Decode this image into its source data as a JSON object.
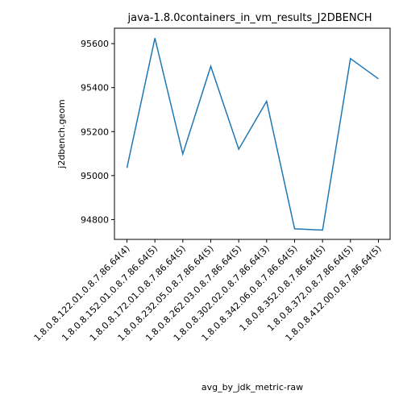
{
  "chart_data": {
    "type": "line",
    "title": "java-1.8.0containers_in_vm_results_J2DBENCH",
    "xlabel": "avg_by_jdk_metric-raw",
    "ylabel": "j2dbench.geom",
    "categories": [
      "1.8.0.8.122.01.0.8.7.86.64(4)",
      "1.8.0.8.152.01.0.8.7.86.64(5)",
      "1.8.0.8.172.01.0.8.7.86.64(5)",
      "1.8.0.8.232.05.0.8.7.86.64(5)",
      "1.8.0.8.262.03.0.8.7.86.64(5)",
      "1.8.0.8.302.02.0.8.7.86.64(3)",
      "1.8.0.8.342.06.0.8.7.86.64(5)",
      "1.8.0.8.352.0.8.7.86.64(5)",
      "1.8.0.8.372.0.8.7.86.64(5)",
      "1.8.0.8.412.00.0.8.7.86.64(5)"
    ],
    "values": [
      95035,
      95625,
      95098,
      95497,
      95120,
      95338,
      94758,
      94752,
      95532,
      95440
    ],
    "yticks": [
      94800,
      95000,
      95200,
      95400,
      95600
    ],
    "ylim": [
      94710,
      95670
    ],
    "grid": false,
    "line_color": "#1f77b4"
  }
}
